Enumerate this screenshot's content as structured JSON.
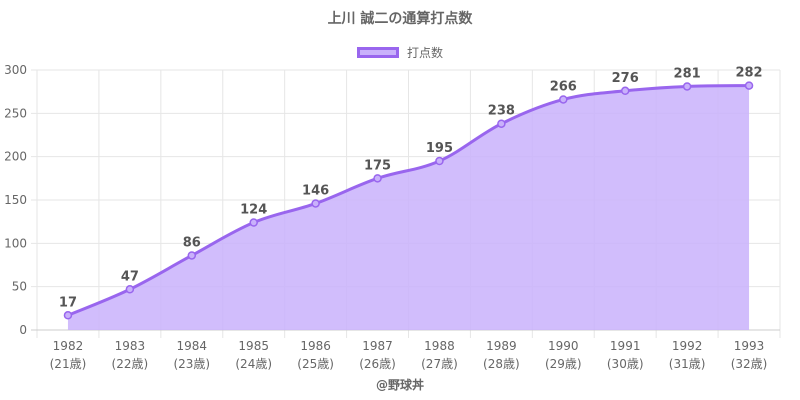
{
  "title": "上川 誠二の通算打点数",
  "credit": "@野球丼",
  "colors": {
    "line": "#9966ee",
    "fill": "#c9b1fb",
    "grid": "#e6e6e6",
    "axis_text": "#666666",
    "label_text": "#555555"
  },
  "chart_data": {
    "type": "area",
    "title": "上川 誠二の通算打点数",
    "categories": [
      "1982",
      "1983",
      "1984",
      "1985",
      "1986",
      "1987",
      "1988",
      "1989",
      "1990",
      "1991",
      "1992",
      "1993"
    ],
    "sublabels": [
      "(21歳)",
      "(22歳)",
      "(23歳)",
      "(24歳)",
      "(25歳)",
      "(26歳)",
      "(27歳)",
      "(28歳)",
      "(29歳)",
      "(30歳)",
      "(31歳)",
      "(32歳)"
    ],
    "series": [
      {
        "name": "打点数",
        "values": [
          17,
          47,
          86,
          124,
          146,
          175,
          195,
          238,
          266,
          276,
          281,
          282
        ]
      }
    ],
    "ylim": [
      0,
      300
    ],
    "yticks": [
      0,
      50,
      100,
      150,
      200,
      250,
      300
    ],
    "grid": true,
    "legend": "top",
    "data_labels": true
  }
}
